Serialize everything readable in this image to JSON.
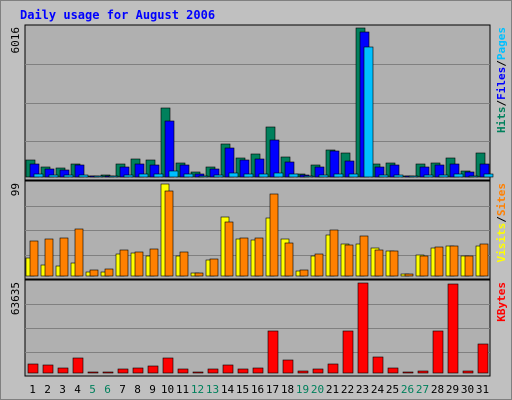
{
  "chart_data": {
    "type": "bar",
    "title": "Daily usage for August 2006",
    "categories": [
      "1",
      "2",
      "3",
      "4",
      "5",
      "6",
      "7",
      "8",
      "9",
      "10",
      "11",
      "12",
      "13",
      "14",
      "15",
      "16",
      "17",
      "18",
      "19",
      "20",
      "21",
      "22",
      "23",
      "24",
      "25",
      "26",
      "27",
      "28",
      "29",
      "30",
      "31"
    ],
    "weekend_days": [
      "5",
      "6",
      "12",
      "13",
      "19",
      "20",
      "26",
      "27"
    ],
    "colors": {
      "background": "#C0C0C0",
      "plot": "#B0B0B0",
      "grid": "#808080",
      "title": "#0000FF",
      "day_label": "#000000",
      "weekend_label": "#00805C",
      "hits": "#00805C",
      "files": "#0000FF",
      "pages": "#00C0FF",
      "visits": "#FFFF00",
      "sites": "#FF8000",
      "kbytes": "#FF0000"
    },
    "panels": [
      {
        "name": "hits-files-pages",
        "max_label": "6016",
        "ylim": [
          0,
          6016
        ],
        "legend": [
          {
            "text": "Hits",
            "color": "#00805C"
          },
          {
            "text": "Files",
            "color": "#0000FF"
          },
          {
            "text": "Pages",
            "color": "#00C0FF"
          }
        ],
        "series": [
          {
            "name": "Hits",
            "color": "#00805C",
            "values": [
              690,
              420,
              360,
              540,
              40,
              70,
              520,
              720,
              700,
              2800,
              560,
              200,
              420,
              1350,
              780,
              920,
              2000,
              820,
              110,
              500,
              1100,
              950,
              6016,
              520,
              560,
              60,
              520,
              580,
              760,
              260,
              960
            ]
          },
          {
            "name": "Files",
            "color": "#0000FF",
            "values": [
              520,
              320,
              290,
              480,
              20,
              45,
              420,
              520,
              480,
              2280,
              500,
              130,
              340,
              1170,
              680,
              740,
              1480,
              610,
              90,
              400,
              1060,
              660,
              5850,
              420,
              470,
              40,
              420,
              490,
              520,
              200,
              520
            ]
          },
          {
            "name": "Pages",
            "color": "#00C0FF",
            "values": [
              140,
              80,
              70,
              90,
              10,
              20,
              90,
              110,
              110,
              240,
              110,
              40,
              70,
              160,
              120,
              140,
              170,
              130,
              20,
              80,
              120,
              130,
              5250,
              90,
              80,
              10,
              80,
              90,
              120,
              60,
              120
            ]
          }
        ]
      },
      {
        "name": "visits-sites",
        "max_label": "99",
        "ylim": [
          0,
          99
        ],
        "legend": [
          {
            "text": "Visits",
            "color": "#FFFF00"
          },
          {
            "text": "Sites",
            "color": "#FF8000"
          }
        ],
        "series": [
          {
            "name": "Visits",
            "color": "#FFFF00",
            "values": [
              19,
              12,
              11,
              14,
              4,
              4,
              24,
              25,
              22,
              99,
              21,
              3,
              17,
              64,
              40,
              39,
              62,
              40,
              5,
              21,
              44,
              34,
              34,
              30,
              27,
              2,
              23,
              30,
              32,
              22,
              32
            ]
          },
          {
            "name": "Sites",
            "color": "#FF8000",
            "values": [
              38,
              40,
              41,
              51,
              6,
              8,
              28,
              26,
              29,
              91,
              26,
              3,
              18,
              58,
              41,
              41,
              88,
              35,
              6,
              24,
              50,
              33,
              43,
              28,
              27,
              2,
              22,
              31,
              32,
              21,
              34
            ]
          }
        ]
      },
      {
        "name": "kbytes",
        "max_label": "63635",
        "ylim": [
          0,
          63635
        ],
        "legend": [
          {
            "text": "KBytes",
            "color": "#FF0000"
          }
        ],
        "series": [
          {
            "name": "KBytes",
            "color": "#FF0000",
            "values": [
              6400,
              5700,
              3600,
              10500,
              400,
              700,
              2500,
              3400,
              4800,
              10500,
              2700,
              900,
              2700,
              5500,
              3100,
              3700,
              30000,
              9500,
              1100,
              2500,
              6500,
              30000,
              63635,
              11000,
              3600,
              400,
              1700,
              30000,
              63000,
              1700,
              20500
            ]
          }
        ]
      }
    ]
  }
}
